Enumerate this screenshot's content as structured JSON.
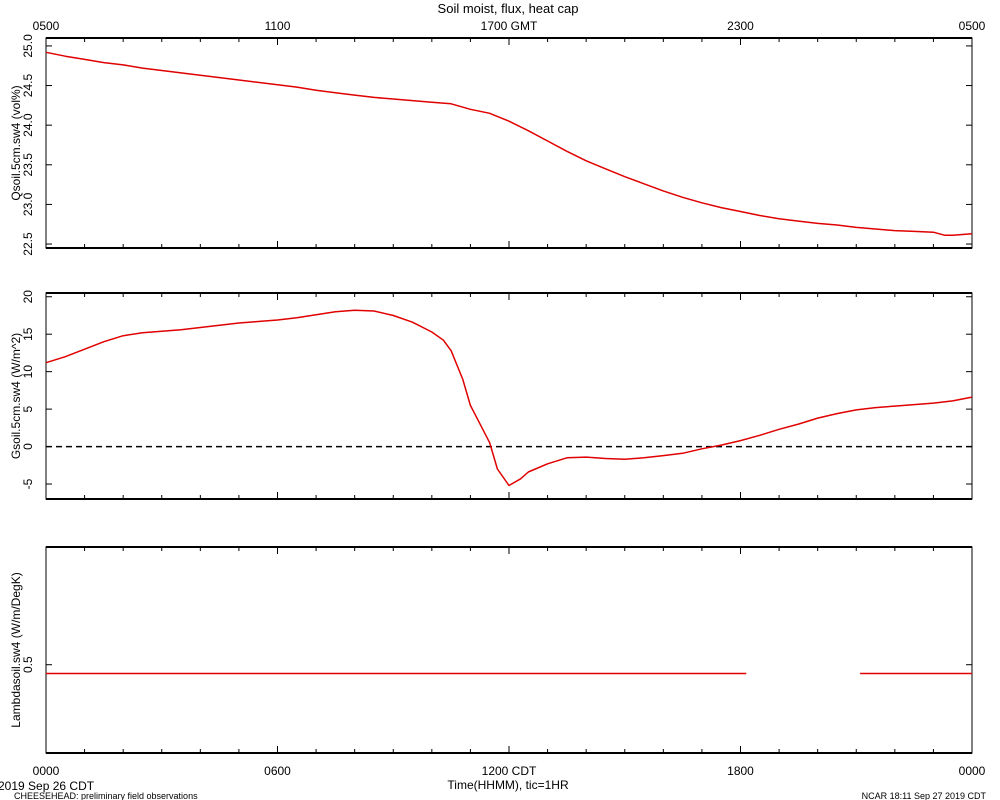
{
  "title": "Soil moist, flux, heat cap",
  "top_axis": {
    "ticks": [
      {
        "hour": 0,
        "label": "0500"
      },
      {
        "hour": 6,
        "label": "1100"
      },
      {
        "hour": 12,
        "label": "1700 GMT"
      },
      {
        "hour": 18,
        "label": "2300"
      },
      {
        "hour": 24,
        "label": "0500"
      }
    ]
  },
  "bottom_axis": {
    "ticks": [
      {
        "hour": 0,
        "label": "0000"
      },
      {
        "hour": 6,
        "label": "0600"
      },
      {
        "hour": 12,
        "label": "1200 CDT"
      },
      {
        "hour": 18,
        "label": "1800"
      },
      {
        "hour": 24,
        "label": "0000"
      }
    ],
    "xlabel": "Time(HHMM), tic=1HR",
    "date_label": "2019 Sep 26 CDT"
  },
  "footer": {
    "left": "CHEESEHEAD: preliminary field observations",
    "right": "NCAR 18:11 Sep 27 2019 CDT"
  },
  "colors": {
    "series": "#e00000",
    "axis": "#000000",
    "zero_line": "#000000"
  },
  "chart_data": [
    {
      "type": "line",
      "ylabel": "Qsoil.5cm.sw4 (vol%)",
      "ylim": [
        22.45,
        25.1
      ],
      "yticks": [
        22.5,
        23.0,
        23.5,
        24.0,
        24.5,
        25.0
      ],
      "ytick_labels": [
        "22.5",
        "23.0",
        "23.5",
        "24.0",
        "24.5",
        "25.0"
      ],
      "series": [
        {
          "x": [
            0,
            0.5,
            1,
            1.5,
            2,
            2.5,
            3,
            3.5,
            4,
            4.5,
            5,
            5.5,
            6,
            6.5,
            7,
            7.5,
            8,
            8.5,
            9,
            9.5,
            10,
            10.5,
            11,
            11.5,
            12,
            12.5,
            13,
            13.5,
            14,
            14.5,
            15,
            15.5,
            16,
            16.5,
            17,
            17.5,
            18,
            18.5,
            19,
            19.5,
            20,
            20.5,
            21,
            21.5,
            22,
            22.5,
            23,
            23.3,
            23.5,
            24
          ],
          "y": [
            24.92,
            24.87,
            24.83,
            24.79,
            24.76,
            24.72,
            24.69,
            24.66,
            24.63,
            24.6,
            24.57,
            24.54,
            24.51,
            24.48,
            24.44,
            24.41,
            24.38,
            24.35,
            24.33,
            24.31,
            24.29,
            24.27,
            24.2,
            24.15,
            24.05,
            23.93,
            23.8,
            23.67,
            23.55,
            23.45,
            23.35,
            23.26,
            23.17,
            23.09,
            23.02,
            22.96,
            22.91,
            22.86,
            22.82,
            22.79,
            22.76,
            22.74,
            22.71,
            22.69,
            22.67,
            22.66,
            22.65,
            22.61,
            22.61,
            22.63
          ]
        }
      ]
    },
    {
      "type": "line",
      "ylabel": "Gsoil.5cm.sw4 (W/m^2)",
      "ylim": [
        -7,
        20.5
      ],
      "yticks": [
        -5,
        0,
        5,
        10,
        15,
        20
      ],
      "ytick_labels": [
        "-5",
        "0",
        "5",
        "10",
        "15",
        "20"
      ],
      "zero_line": true,
      "series": [
        {
          "x": [
            0,
            0.5,
            1,
            1.5,
            2,
            2.5,
            3,
            3.5,
            4,
            4.5,
            5,
            5.5,
            6,
            6.5,
            7,
            7.5,
            8,
            8.5,
            9,
            9.5,
            10,
            10.3,
            10.5,
            10.8,
            11,
            11.3,
            11.5,
            11.7,
            12,
            12.3,
            12.5,
            13,
            13.5,
            14,
            14.5,
            15,
            15.5,
            16,
            16.5,
            17,
            17.5,
            18,
            18.5,
            19,
            19.5,
            20,
            20.5,
            21,
            21.5,
            22,
            22.5,
            23,
            23.5,
            24
          ],
          "y": [
            11.2,
            12.0,
            13.0,
            14.0,
            14.8,
            15.2,
            15.4,
            15.6,
            15.9,
            16.2,
            16.5,
            16.7,
            16.9,
            17.2,
            17.6,
            18.0,
            18.2,
            18.1,
            17.5,
            16.6,
            15.3,
            14.2,
            12.8,
            9.0,
            5.5,
            2.5,
            0.5,
            -3.0,
            -5.2,
            -4.3,
            -3.4,
            -2.3,
            -1.5,
            -1.4,
            -1.6,
            -1.7,
            -1.5,
            -1.2,
            -0.9,
            -0.3,
            0.2,
            0.8,
            1.5,
            2.3,
            3.0,
            3.8,
            4.4,
            4.9,
            5.2,
            5.4,
            5.6,
            5.8,
            6.1,
            6.6
          ]
        }
      ]
    },
    {
      "type": "line",
      "ylabel": "Lambdasoil.sw4 (W/m/DegK)",
      "ylim": [
        0.2,
        0.9
      ],
      "yticks": [
        0.5
      ],
      "ytick_labels": [
        "0.5"
      ],
      "series": [
        {
          "segments": [
            {
              "x": [
                0,
                18.15
              ],
              "y": [
                0.47,
                0.47
              ]
            },
            {
              "x": [
                21.1,
                24
              ],
              "y": [
                0.47,
                0.47
              ]
            }
          ]
        }
      ]
    }
  ]
}
